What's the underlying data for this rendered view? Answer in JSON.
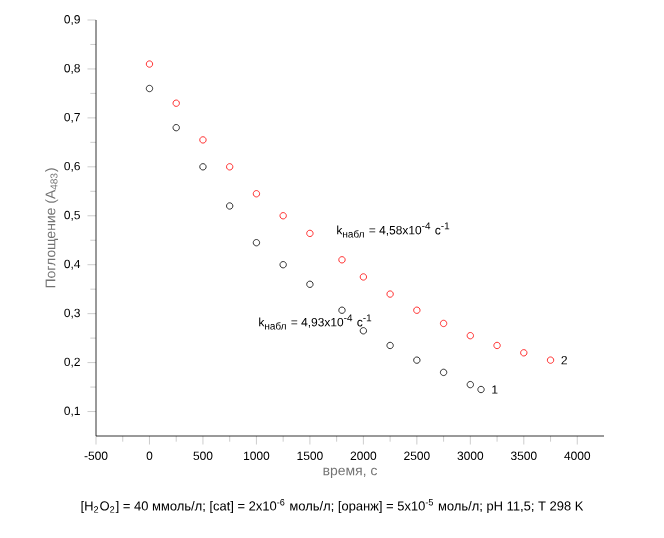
{
  "chart_data": {
    "type": "scatter",
    "xlabel": "время, с",
    "ylabel": "Поглощение (A$_{483}$)",
    "xlim": [
      -500,
      4250
    ],
    "ylim": [
      0.05,
      0.9
    ],
    "xticks": [
      -500,
      0,
      500,
      1000,
      1500,
      2000,
      2500,
      3000,
      3500,
      4000
    ],
    "yticks": [
      {
        "value": 0.1,
        "label": "0,1"
      },
      {
        "value": 0.2,
        "label": "0,2"
      },
      {
        "value": 0.3,
        "label": "0,3"
      },
      {
        "value": 0.4,
        "label": "0,4"
      },
      {
        "value": 0.5,
        "label": "0,5"
      },
      {
        "value": 0.6,
        "label": "0,6"
      },
      {
        "value": 0.7,
        "label": "0,7"
      },
      {
        "value": 0.8,
        "label": "0,8"
      },
      {
        "value": 0.9,
        "label": "0,9"
      }
    ],
    "marker": "circle",
    "grid": false,
    "series": [
      {
        "name": "1",
        "color": "#000000",
        "x": [
          0,
          250,
          500,
          750,
          1000,
          1250,
          1500,
          1800,
          2000,
          2250,
          2500,
          2750,
          3000,
          3100
        ],
        "values": [
          0.76,
          0.68,
          0.6,
          0.52,
          0.445,
          0.4,
          0.36,
          0.307,
          0.265,
          0.235,
          0.205,
          0.18,
          0.155,
          0.145
        ]
      },
      {
        "name": "2",
        "color": "#ff0000",
        "x": [
          0,
          250,
          500,
          750,
          1000,
          1250,
          1500,
          1800,
          2000,
          2250,
          2500,
          2750,
          3000,
          3250,
          3500,
          3750
        ],
        "values": [
          0.81,
          0.73,
          0.655,
          0.6,
          0.545,
          0.5,
          0.464,
          0.41,
          0.375,
          0.34,
          0.307,
          0.28,
          0.255,
          0.235,
          0.22,
          0.205
        ]
      }
    ],
    "annotations": [
      "k$_{набл}$ = 4,58x10$^{-4}$ с$^{-1}$",
      "k$_{набл}$ = 4,93x10$^{-4}$ с$^{-1}$",
      "[H$_{2}$O$_{2}$] = 40 ммоль/л; [cat] = 2x10$^{-6}$ моль/л; [оранж] = 5x10$^{-5}$ моль/л; pH 11,5; T 298 K"
    ]
  }
}
